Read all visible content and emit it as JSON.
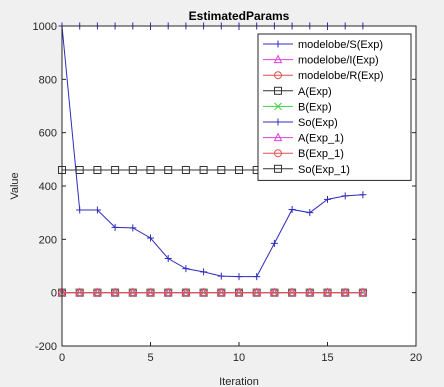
{
  "chart_data": {
    "type": "line",
    "title": "EstimatedParams",
    "xlabel": "Iteration",
    "ylabel": "Value",
    "xlim": [
      0,
      20
    ],
    "ylim": [
      -200,
      1000
    ],
    "xticks": [
      0,
      5,
      10,
      15,
      20
    ],
    "yticks": [
      -200,
      0,
      200,
      400,
      600,
      800,
      1000
    ],
    "xtick_labels": [
      "0",
      "5",
      "10",
      "15",
      "20"
    ],
    "ytick_labels": [
      "-200",
      "0",
      "200",
      "400",
      "600",
      "800",
      "1000"
    ],
    "legend_position": "top-right",
    "grid": false,
    "series": [
      {
        "name": "modelobe/S(Exp)",
        "color": "#2c2cbf",
        "marker": "plus",
        "x": [
          0,
          1,
          2,
          3,
          4,
          5,
          6,
          7,
          8,
          9,
          10,
          11,
          12,
          13,
          14,
          15,
          16,
          17
        ],
        "y": [
          1000,
          1000,
          1000,
          1000,
          1000,
          1000,
          1000,
          1000,
          1000,
          1000,
          1000,
          1000,
          1000,
          1000,
          1000,
          1000,
          1000,
          1000
        ]
      },
      {
        "name": "modelobe/I(Exp)",
        "color": "#e040e0",
        "marker": "triangle",
        "x": [
          0,
          1,
          2,
          3,
          4,
          5,
          6,
          7,
          8,
          9,
          10,
          11,
          12,
          13,
          14,
          15,
          16,
          17
        ],
        "y": [
          0,
          0,
          0,
          0,
          0,
          0,
          0,
          0,
          0,
          0,
          0,
          0,
          0,
          0,
          0,
          0,
          0,
          0
        ]
      },
      {
        "name": "modelobe/R(Exp)",
        "color": "#e05050",
        "marker": "circle",
        "x": [
          0,
          1,
          2,
          3,
          4,
          5,
          6,
          7,
          8,
          9,
          10,
          11,
          12,
          13,
          14,
          15,
          16,
          17
        ],
        "y": [
          0,
          0,
          0,
          0,
          0,
          0,
          0,
          0,
          0,
          0,
          0,
          0,
          0,
          0,
          0,
          0,
          0,
          0
        ]
      },
      {
        "name": "A(Exp)",
        "color": "#333333",
        "marker": "square",
        "x": [
          0,
          1,
          2,
          3,
          4,
          5,
          6,
          7,
          8,
          9,
          10,
          11,
          12,
          13,
          14,
          15,
          16,
          17
        ],
        "y": [
          0,
          0,
          0,
          0,
          0,
          0,
          0,
          0,
          0,
          0,
          0,
          0,
          0,
          0,
          0,
          0,
          0,
          0
        ]
      },
      {
        "name": "B(Exp)",
        "color": "#40d040",
        "marker": "x",
        "x": [
          0,
          1,
          2,
          3,
          4,
          5,
          6,
          7,
          8,
          9,
          10,
          11,
          12,
          13,
          14,
          15,
          16,
          17
        ],
        "y": [
          0,
          0,
          0,
          0,
          0,
          0,
          0,
          0,
          0,
          0,
          0,
          0,
          0,
          0,
          0,
          0,
          0,
          0
        ]
      },
      {
        "name": "So(Exp)",
        "color": "#2c2cbf",
        "marker": "plus",
        "x": [
          0,
          1,
          2,
          3,
          4,
          5,
          6,
          7,
          8,
          9,
          10,
          11,
          12,
          13,
          14,
          15,
          16,
          17
        ],
        "y": [
          1000,
          310,
          310,
          245,
          243,
          205,
          128,
          90,
          78,
          62,
          60,
          60,
          185,
          312,
          300,
          350,
          363,
          367
        ]
      },
      {
        "name": "A(Exp_1)",
        "color": "#e040e0",
        "marker": "triangle",
        "x": [
          0,
          1,
          2,
          3,
          4,
          5,
          6,
          7,
          8,
          9,
          10,
          11,
          12,
          13,
          14,
          15,
          16,
          17
        ],
        "y": [
          0,
          0,
          0,
          0,
          0,
          0,
          0,
          0,
          0,
          0,
          0,
          0,
          0,
          0,
          0,
          0,
          0,
          0
        ]
      },
      {
        "name": "B(Exp_1)",
        "color": "#e05050",
        "marker": "circle",
        "x": [
          0,
          1,
          2,
          3,
          4,
          5,
          6,
          7,
          8,
          9,
          10,
          11,
          12,
          13,
          14,
          15,
          16,
          17
        ],
        "y": [
          0,
          0,
          0,
          0,
          0,
          0,
          0,
          0,
          0,
          0,
          0,
          0,
          0,
          0,
          0,
          0,
          0,
          0
        ]
      },
      {
        "name": "So(Exp_1)",
        "color": "#333333",
        "marker": "square",
        "x": [
          0,
          1,
          2,
          3,
          4,
          5,
          6,
          7,
          8,
          9,
          10,
          11,
          12,
          13,
          14,
          15,
          16,
          17
        ],
        "y": [
          460,
          460,
          460,
          460,
          460,
          460,
          460,
          460,
          460,
          460,
          460,
          460,
          460,
          460,
          460,
          460,
          460,
          460
        ]
      }
    ]
  }
}
